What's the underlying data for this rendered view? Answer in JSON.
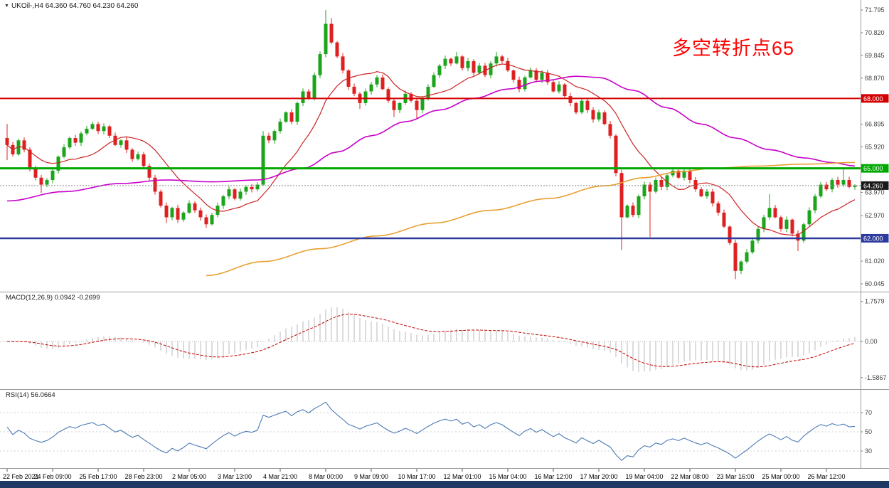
{
  "header": {
    "symbol_info": "UKOil-,H4  64.360 64.760 64.230 64.260"
  },
  "annotation": {
    "text": "多空转折点65",
    "color": "#FF0000"
  },
  "colors": {
    "up_candle": "#1CA41C",
    "down_candle": "#DF2020",
    "separator": "#9A9A9A",
    "axis_text": "#333333",
    "date_text": "#000000",
    "current_tag_bg": "#1A1A1A",
    "bottom_bar": "#1F3864"
  },
  "chart_data": {
    "type": "candlestick",
    "symbol": "UKOil-",
    "timeframe": "H4",
    "ohlc_current": {
      "open": 64.36,
      "high": 64.76,
      "low": 64.23,
      "close": 64.26
    },
    "x_labels": [
      "22 Feb 2021",
      "24 Feb 09:00",
      "25 Feb 17:00",
      "28 Feb 23:00",
      "2 Mar 05:00",
      "3 Mar 13:00",
      "4 Mar 21:00",
      "8 Mar 00:00",
      "9 Mar 09:00",
      "10 Mar 17:00",
      "12 Mar 01:00",
      "15 Mar 04:00",
      "16 Mar 12:00",
      "17 Mar 20:00",
      "19 Mar 04:00",
      "22 Mar 08:00",
      "23 Mar 16:00",
      "25 Mar 00:00",
      "26 Mar 12:00"
    ],
    "price_axis_labels": [
      "71.795",
      "70.820",
      "69.845",
      "68.870",
      "66.895",
      "65.920",
      "63.970",
      "62.970",
      "61.020",
      "60.045"
    ],
    "horizontal_lines": [
      {
        "price": 68.0,
        "label": "68.000",
        "color": "#D40000",
        "width": 2
      },
      {
        "price": 65.0,
        "label": "65.000",
        "color": "#00A900",
        "width": 3
      },
      {
        "price": 62.0,
        "label": "62.000",
        "color": "#2E3B9E",
        "width": 2.5
      }
    ],
    "current_price": {
      "price": 64.26,
      "label": "64.260"
    },
    "candles": {
      "first_open": 66.3,
      "closes": [
        66.0,
        65.6,
        66.2,
        65.8,
        65.0,
        64.6,
        64.3,
        64.5,
        64.9,
        65.5,
        65.9,
        66.3,
        66.1,
        66.5,
        66.7,
        66.9,
        66.6,
        66.8,
        66.4,
        66.0,
        66.2,
        65.8,
        65.4,
        65.6,
        65.1,
        64.6,
        64.0,
        63.4,
        62.9,
        63.3,
        62.8,
        63.1,
        63.5,
        63.2,
        62.9,
        62.6,
        63.0,
        63.4,
        63.8,
        64.1,
        63.7,
        64.0,
        64.2,
        64.1,
        64.3,
        66.4,
        66.2,
        66.6,
        67.0,
        67.4,
        67.0,
        67.8,
        68.3,
        68.0,
        69.0,
        69.9,
        71.2,
        70.4,
        69.8,
        69.2,
        68.5,
        68.2,
        67.8,
        68.3,
        68.6,
        68.9,
        68.4,
        67.9,
        67.5,
        67.8,
        68.2,
        67.9,
        67.5,
        68.0,
        68.5,
        69.0,
        69.4,
        69.7,
        69.5,
        69.8,
        69.3,
        69.6,
        69.1,
        69.4,
        69.0,
        69.5,
        69.8,
        69.6,
        69.2,
        68.8,
        68.4,
        68.9,
        69.2,
        68.8,
        69.1,
        68.7,
        68.3,
        68.6,
        68.1,
        67.8,
        67.4,
        67.9,
        67.5,
        67.1,
        67.4,
        66.9,
        66.4,
        64.8,
        62.9,
        63.4,
        63.0,
        63.8,
        64.3,
        64.0,
        64.5,
        64.2,
        64.7,
        64.9,
        64.6,
        64.9,
        64.5,
        64.1,
        63.8,
        64.0,
        63.5,
        63.1,
        62.5,
        61.8,
        60.6,
        61.0,
        61.4,
        61.9,
        62.4,
        62.9,
        63.3,
        62.9,
        62.4,
        62.8,
        62.2,
        61.9,
        62.6,
        63.2,
        63.8,
        64.3,
        64.1,
        64.5,
        64.3,
        64.5,
        64.2,
        64.26
      ],
      "high_overrides": {
        "0": 66.9,
        "15": 67.0,
        "45": 66.6,
        "56": 71.795,
        "57": 71.45,
        "79": 70.0,
        "86": 70.0,
        "117": 65.05,
        "134": 63.9,
        "147": 65.0
      },
      "low_overrides": {
        "0": 65.35,
        "6": 63.95,
        "28": 62.65,
        "35": 62.45,
        "62": 67.55,
        "68": 67.2,
        "72": 67.15,
        "108": 61.5,
        "113": 62.05,
        "128": 60.25,
        "139": 61.45
      }
    },
    "moving_averages": {
      "fast_red": {
        "type": "sma",
        "period": 12,
        "color": "#CC2222",
        "width": 1.2
      },
      "mid_magenta": {
        "color": "#C800C8",
        "width": 1.6,
        "points": [
          [
            0,
            63.6
          ],
          [
            10,
            64.0
          ],
          [
            20,
            64.35
          ],
          [
            28,
            64.5
          ],
          [
            36,
            64.42
          ],
          [
            44,
            64.5
          ],
          [
            52,
            65.0
          ],
          [
            58,
            65.7
          ],
          [
            64,
            66.4
          ],
          [
            70,
            67.0
          ],
          [
            76,
            67.5
          ],
          [
            82,
            68.0
          ],
          [
            88,
            68.4
          ],
          [
            94,
            68.75
          ],
          [
            100,
            68.95
          ],
          [
            104,
            68.9
          ],
          [
            110,
            68.35
          ],
          [
            116,
            67.6
          ],
          [
            122,
            66.9
          ],
          [
            128,
            66.3
          ],
          [
            134,
            65.8
          ],
          [
            140,
            65.45
          ],
          [
            145,
            65.25
          ],
          [
            149,
            65.1
          ]
        ]
      },
      "slow_orange": {
        "color": "#E8A030",
        "width": 1.6,
        "points": [
          [
            35,
            60.4
          ],
          [
            45,
            61.0
          ],
          [
            55,
            61.55
          ],
          [
            65,
            62.1
          ],
          [
            75,
            62.65
          ],
          [
            85,
            63.2
          ],
          [
            95,
            63.7
          ],
          [
            105,
            64.25
          ],
          [
            112,
            64.6
          ],
          [
            118,
            64.85
          ],
          [
            124,
            65.0
          ],
          [
            132,
            65.1
          ],
          [
            140,
            65.18
          ],
          [
            149,
            65.25
          ]
        ]
      }
    },
    "macd": {
      "label": "MACD(12,26,9) 0.0942 -0.2699",
      "params": [
        12,
        26,
        9
      ],
      "current": 0.0942,
      "signal_current": -0.2699,
      "axis_labels": [
        "1.7579",
        "0.00",
        "-1.5867"
      ],
      "hist_color": "#B8B8B8",
      "signal_color": "#C00000"
    },
    "rsi": {
      "label": "RSI(14) 56.0664",
      "period": 14,
      "current": 56.0664,
      "levels": [
        70,
        50,
        30
      ],
      "line_color": "#4A7AB5"
    }
  }
}
